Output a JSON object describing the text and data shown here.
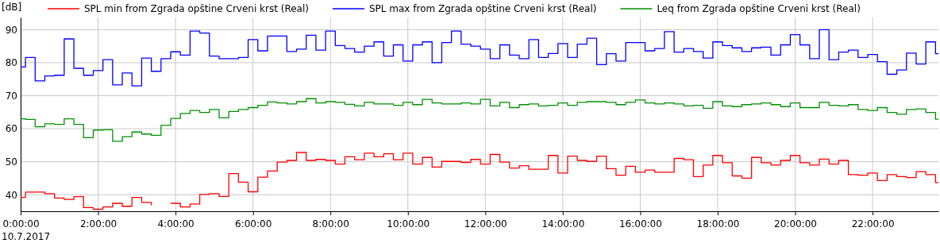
{
  "chart_data": {
    "type": "step",
    "ylabel": "[dB]",
    "x": [
      0,
      0.125,
      0.375,
      0.625,
      0.875,
      1.125,
      1.375,
      1.625,
      1.875,
      2.125,
      2.375,
      2.625,
      2.875,
      3.125,
      3.375,
      3.625,
      3.875,
      4.125,
      4.375,
      4.625,
      4.875,
      5.125,
      5.375,
      5.625,
      5.875,
      6.125,
      6.375,
      6.625,
      6.875,
      7.125,
      7.375,
      7.625,
      7.875,
      8.125,
      8.375,
      8.625,
      8.875,
      9.125,
      9.375,
      9.625,
      9.875,
      10.125,
      10.375,
      10.625,
      10.875,
      11.125,
      11.375,
      11.625,
      11.875,
      12.125,
      12.375,
      12.625,
      12.875,
      13.125,
      13.375,
      13.625,
      13.875,
      14.125,
      14.375,
      14.625,
      14.875,
      15.125,
      15.375,
      15.625,
      15.875,
      16.125,
      16.375,
      16.625,
      16.875,
      17.125,
      17.375,
      17.625,
      17.875,
      18.125,
      18.375,
      18.625,
      18.875,
      19.125,
      19.375,
      19.625,
      19.875,
      20.125,
      20.375,
      20.625,
      20.875,
      21.125,
      21.375,
      21.625,
      21.875,
      22.125,
      22.375,
      22.625,
      22.875,
      23.125,
      23.375,
      23.625
    ],
    "series": [
      {
        "name": "SPL min from Zgrada opštine Crveni krst (Real)",
        "color": "#ff0000",
        "values": [
          39.2,
          40.8,
          40.8,
          40.3,
          39.0,
          38.6,
          39.4,
          36.1,
          35.6,
          36.3,
          37.4,
          36.5,
          39.2,
          37.7,
          36.8,
          null,
          37.4,
          36.3,
          37.2,
          40.1,
          40.3,
          39.5,
          46.4,
          43.8,
          40.9,
          45.3,
          47.2,
          49.9,
          50.4,
          52.8,
          50.4,
          50.7,
          50.4,
          49.3,
          51.5,
          50.6,
          52.6,
          51.5,
          52.4,
          50.6,
          52.6,
          49.3,
          51.3,
          48.4,
          50.1,
          50.1,
          49.8,
          50.7,
          49.3,
          52.2,
          49.9,
          48.1,
          48.8,
          47.7,
          47.7,
          51.9,
          46.6,
          51.7,
          50.4,
          50.1,
          51.7,
          47.9,
          45.9,
          48.6,
          46.8,
          47.5,
          46.8,
          46.8,
          51.0,
          50.6,
          45.5,
          49.0,
          51.9,
          49.7,
          45.7,
          45.0,
          51.3,
          49.7,
          49.0,
          50.4,
          51.9,
          49.7,
          49.0,
          50.8,
          49.3,
          50.4,
          46.1,
          45.9,
          46.6,
          44.3,
          46.1,
          45.5,
          45.2,
          47.0,
          46.1,
          43.7
        ]
      },
      {
        "name": "SPL max from Zgrada opštine Crveni krst (Real)",
        "color": "#0000ff",
        "values": [
          78.7,
          81.6,
          74.5,
          76.0,
          76.2,
          87.2,
          78.3,
          76.2,
          77.6,
          80.9,
          73.3,
          76.9,
          73.0,
          81.4,
          77.4,
          81.2,
          83.3,
          82.3,
          89.6,
          89.0,
          82.0,
          81.2,
          81.2,
          81.6,
          87.0,
          83.6,
          88.1,
          88.1,
          83.4,
          84.1,
          88.3,
          83.8,
          89.6,
          85.2,
          84.3,
          83.2,
          85.0,
          86.3,
          82.0,
          85.4,
          80.5,
          85.4,
          86.3,
          80.0,
          86.1,
          89.6,
          85.6,
          85.0,
          84.1,
          81.2,
          85.4,
          82.3,
          81.2,
          87.0,
          81.6,
          82.8,
          85.8,
          81.6,
          85.6,
          87.4,
          79.4,
          82.7,
          80.5,
          86.1,
          86.1,
          83.6,
          84.3,
          89.4,
          83.2,
          84.3,
          83.4,
          81.4,
          86.3,
          85.2,
          84.5,
          83.4,
          84.5,
          84.7,
          82.3,
          85.4,
          88.5,
          85.4,
          81.2,
          90.0,
          80.9,
          83.2,
          83.8,
          81.6,
          82.5,
          80.3,
          76.5,
          77.8,
          82.9,
          79.6,
          86.3,
          82.7
        ]
      },
      {
        "name": "Leq from Zgrada opštine Crveni krst (Real)",
        "color": "#009000",
        "values": [
          63.0,
          62.8,
          60.6,
          61.5,
          61.3,
          63.0,
          61.3,
          57.3,
          59.6,
          59.7,
          56.2,
          57.6,
          59.0,
          58.4,
          58.0,
          61.0,
          63.1,
          64.6,
          65.5,
          64.9,
          65.8,
          63.3,
          65.2,
          65.8,
          66.4,
          67.1,
          68.1,
          67.8,
          67.5,
          68.2,
          69.1,
          67.8,
          68.2,
          68.0,
          67.4,
          66.9,
          68.0,
          67.5,
          67.5,
          67.1,
          68.0,
          67.3,
          68.9,
          67.8,
          67.5,
          67.5,
          67.8,
          67.5,
          68.9,
          66.9,
          68.0,
          66.4,
          67.3,
          67.5,
          66.9,
          67.1,
          67.8,
          67.1,
          68.0,
          68.2,
          68.2,
          68.0,
          67.3,
          68.0,
          68.7,
          67.8,
          67.5,
          67.8,
          67.5,
          66.9,
          67.1,
          66.2,
          68.2,
          66.9,
          66.7,
          67.3,
          67.5,
          67.8,
          67.3,
          66.7,
          67.8,
          66.4,
          66.4,
          68.0,
          67.1,
          66.9,
          67.3,
          65.8,
          65.5,
          66.4,
          64.9,
          64.4,
          65.8,
          66.0,
          64.9,
          62.9
        ]
      }
    ],
    "xlim": [
      0,
      23.7
    ],
    "xticks": [
      {
        "value": 0,
        "label": "0:00:00"
      },
      {
        "value": 2,
        "label": "2:00:00"
      },
      {
        "value": 4,
        "label": "4:00:00"
      },
      {
        "value": 6,
        "label": "6:00:00"
      },
      {
        "value": 8,
        "label": "8:00:00"
      },
      {
        "value": 10,
        "label": "10:00:00"
      },
      {
        "value": 12,
        "label": "12:00:00"
      },
      {
        "value": 14,
        "label": "14:00:00"
      },
      {
        "value": 16,
        "label": "16:00:00"
      },
      {
        "value": 18,
        "label": "18:00:00"
      },
      {
        "value": 20,
        "label": "20:00:00"
      },
      {
        "value": 22,
        "label": "22:00:00"
      }
    ],
    "ylim": [
      35,
      93.7
    ],
    "yticks": [
      40,
      50,
      60,
      70,
      80,
      90
    ],
    "grid": true,
    "legend": "top",
    "line_style": "solid",
    "annotations": [
      "10.7.2017"
    ]
  }
}
